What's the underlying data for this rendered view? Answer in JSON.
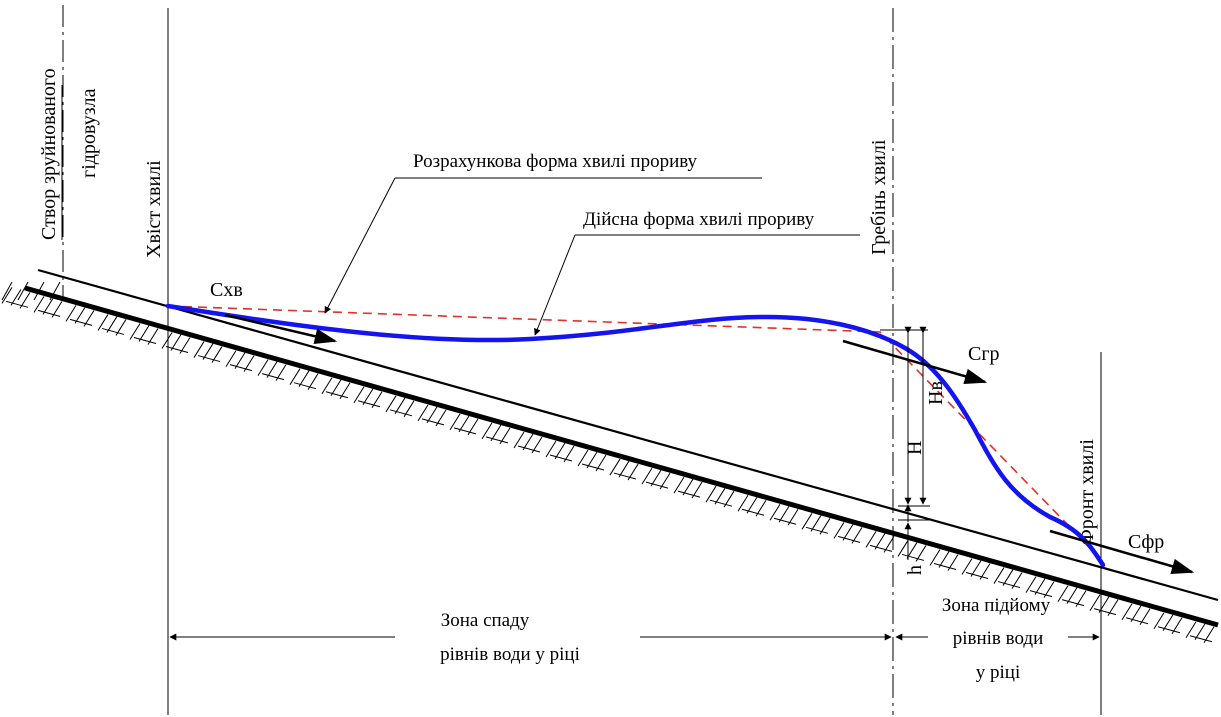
{
  "labels": {
    "dam_site_line1": "Створ зруйнованого",
    "dam_site_line2": "гідровузла",
    "wave_tail": "Хвіст хвилі",
    "wave_crest": "Гребінь хвилі",
    "wave_front": "Фронт хвилі",
    "calc_form": "Розрахункова форма хвилі прориву",
    "actual_form": "Дійсна форма хвилі прориву",
    "zone_fall_line1": "Зона спаду",
    "zone_fall_line2": "рівнів води у ріці",
    "zone_rise_line1": "Зона підйому",
    "zone_rise_line2": "рівнів води",
    "zone_rise_line3": "у ріці"
  },
  "symbols": {
    "c_tail": "Схв",
    "c_crest": "Сгр",
    "c_front": "Сфр",
    "h_total": "H",
    "h_wave": "Нв",
    "h_depth": "h"
  },
  "colors": {
    "actual_wave": "#1414ee",
    "calc_wave": "#e0312a",
    "lines": "#000000"
  }
}
